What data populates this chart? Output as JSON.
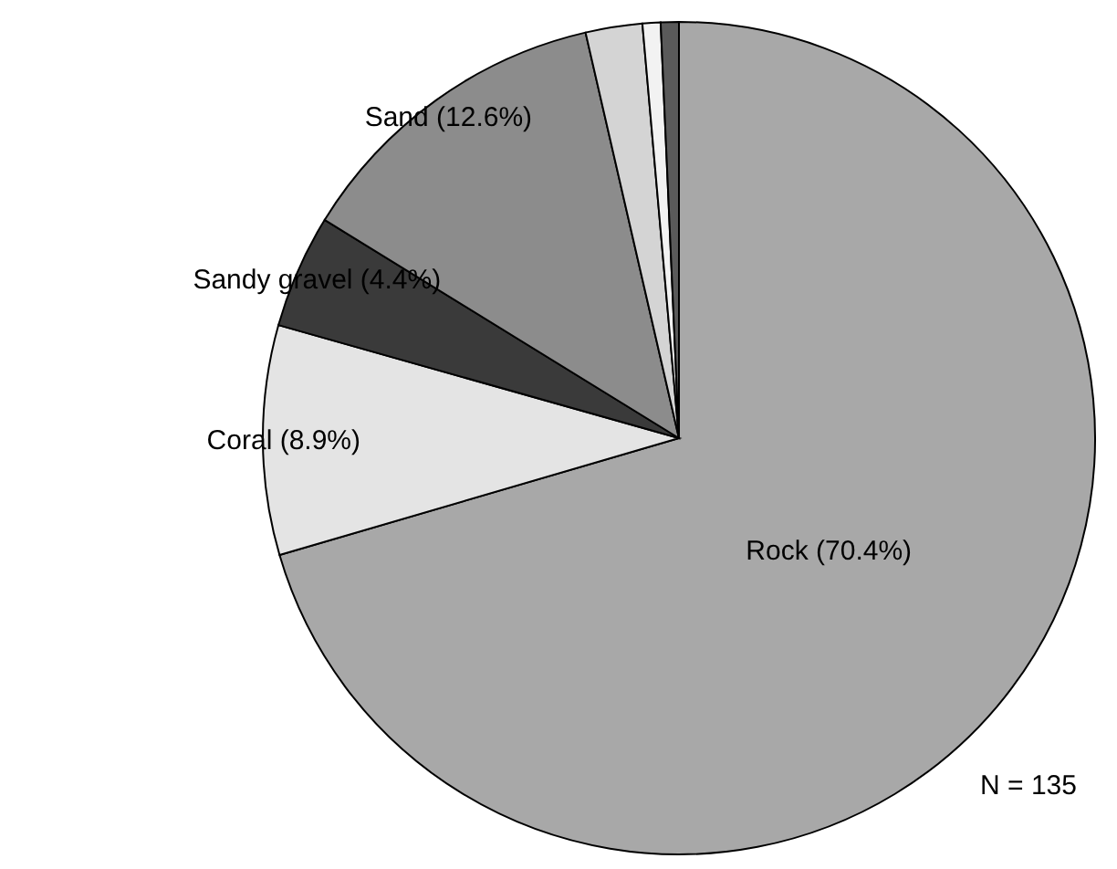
{
  "chart_data": {
    "type": "pie",
    "categories": [
      "Rock (70.4%)",
      "Coral (8.9%)",
      "Sandy gravel (4.4%)",
      "Sand (12.6%)",
      null,
      null,
      null
    ],
    "values": [
      70.4,
      8.9,
      4.4,
      12.6,
      2.2,
      0.7,
      0.7
    ],
    "colors": [
      "#a8a8a8",
      "#e4e4e4",
      "#3a3a3a",
      "#8c8c8c",
      "#d4d4d4",
      "#f2f2f2",
      "#5a5a5a"
    ],
    "annotations": [
      "N = 135"
    ]
  }
}
